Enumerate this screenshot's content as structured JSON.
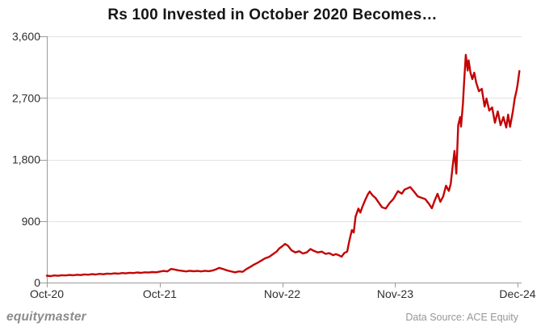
{
  "chart_data": {
    "type": "line",
    "title": "Rs 100 Invested in October 2020 Becomes…",
    "xlabel": "",
    "ylabel": "",
    "ylim": [
      0,
      3600
    ],
    "xlim_months": [
      0,
      50.4
    ],
    "grid": "horizontal-only",
    "legend": "none",
    "y_ticks": [
      {
        "label": "0",
        "value": 0
      },
      {
        "label": "900",
        "value": 900
      },
      {
        "label": "1,800",
        "value": 1800
      },
      {
        "label": "2,700",
        "value": 2700
      },
      {
        "label": "3,600",
        "value": 3600
      }
    ],
    "x_ticks": [
      {
        "label": "Oct-20",
        "month": 0
      },
      {
        "label": "Oct-21",
        "month": 12
      },
      {
        "label": "Nov-22",
        "month": 25
      },
      {
        "label": "Nov-23",
        "month": 37
      },
      {
        "label": "Dec-24",
        "month": 50
      }
    ],
    "start_value": 100,
    "end_value": 3092,
    "peak_value": 3330,
    "points": [
      [
        0,
        100
      ],
      [
        0.4,
        95
      ],
      [
        0.8,
        104
      ],
      [
        1.2,
        99
      ],
      [
        1.6,
        107
      ],
      [
        2,
        104
      ],
      [
        2.4,
        111
      ],
      [
        2.8,
        106
      ],
      [
        3.2,
        114
      ],
      [
        3.6,
        110
      ],
      [
        4,
        119
      ],
      [
        4.4,
        114
      ],
      [
        4.8,
        123
      ],
      [
        5.2,
        118
      ],
      [
        5.6,
        127
      ],
      [
        6,
        122
      ],
      [
        6.4,
        131
      ],
      [
        6.8,
        127
      ],
      [
        7.2,
        135
      ],
      [
        7.6,
        130
      ],
      [
        8,
        139
      ],
      [
        8.4,
        134
      ],
      [
        8.8,
        143
      ],
      [
        9.2,
        139
      ],
      [
        9.6,
        147
      ],
      [
        10,
        142
      ],
      [
        10.4,
        150
      ],
      [
        10.8,
        146
      ],
      [
        11.2,
        154
      ],
      [
        11.6,
        150
      ],
      [
        12,
        160
      ],
      [
        12.4,
        170
      ],
      [
        12.8,
        163
      ],
      [
        13.2,
        200
      ],
      [
        13.6,
        190
      ],
      [
        14,
        178
      ],
      [
        14.4,
        170
      ],
      [
        14.8,
        163
      ],
      [
        15.2,
        172
      ],
      [
        15.6,
        165
      ],
      [
        16,
        170
      ],
      [
        16.4,
        163
      ],
      [
        16.8,
        172
      ],
      [
        17.2,
        167
      ],
      [
        17.6,
        176
      ],
      [
        18,
        195
      ],
      [
        18.3,
        215
      ],
      [
        18.7,
        200
      ],
      [
        19.1,
        180
      ],
      [
        19.5,
        165
      ],
      [
        20,
        150
      ],
      [
        20.4,
        163
      ],
      [
        20.8,
        157
      ],
      [
        21.2,
        197
      ],
      [
        21.6,
        228
      ],
      [
        22,
        262
      ],
      [
        22.4,
        290
      ],
      [
        22.8,
        322
      ],
      [
        23.2,
        355
      ],
      [
        23.6,
        374
      ],
      [
        24,
        413
      ],
      [
        24.4,
        452
      ],
      [
        24.7,
        500
      ],
      [
        25,
        530
      ],
      [
        25.3,
        565
      ],
      [
        25.6,
        540
      ],
      [
        26,
        470
      ],
      [
        26.4,
        440
      ],
      [
        26.8,
        458
      ],
      [
        27.2,
        425
      ],
      [
        27.6,
        440
      ],
      [
        28,
        490
      ],
      [
        28.4,
        462
      ],
      [
        28.8,
        440
      ],
      [
        29.2,
        452
      ],
      [
        29.6,
        420
      ],
      [
        30,
        430
      ],
      [
        30.4,
        400
      ],
      [
        30.7,
        415
      ],
      [
        31,
        400
      ],
      [
        31.3,
        378
      ],
      [
        31.6,
        433
      ],
      [
        31.9,
        452
      ],
      [
        32.1,
        590
      ],
      [
        32.3,
        708
      ],
      [
        32.4,
        767
      ],
      [
        32.6,
        732
      ],
      [
        32.8,
        964
      ],
      [
        33.1,
        1082
      ],
      [
        33.3,
        1023
      ],
      [
        33.5,
        1101
      ],
      [
        33.8,
        1200
      ],
      [
        34.1,
        1290
      ],
      [
        34.3,
        1330
      ],
      [
        34.6,
        1275
      ],
      [
        34.9,
        1239
      ],
      [
        35.2,
        1180
      ],
      [
        35.6,
        1101
      ],
      [
        36,
        1082
      ],
      [
        36.4,
        1160
      ],
      [
        36.8,
        1220
      ],
      [
        37.3,
        1337
      ],
      [
        37.7,
        1300
      ],
      [
        38,
        1360
      ],
      [
        38.3,
        1377
      ],
      [
        38.6,
        1396
      ],
      [
        39,
        1330
      ],
      [
        39.4,
        1259
      ],
      [
        39.8,
        1239
      ],
      [
        40.2,
        1220
      ],
      [
        40.6,
        1150
      ],
      [
        40.9,
        1086
      ],
      [
        41.2,
        1200
      ],
      [
        41.5,
        1298
      ],
      [
        41.8,
        1180
      ],
      [
        42.1,
        1260
      ],
      [
        42.4,
        1416
      ],
      [
        42.7,
        1340
      ],
      [
        42.9,
        1440
      ],
      [
        43.1,
        1688
      ],
      [
        43.3,
        1924
      ],
      [
        43.5,
        1594
      ],
      [
        43.7,
        2302
      ],
      [
        43.9,
        2420
      ],
      [
        44,
        2280
      ],
      [
        44.2,
        2620
      ],
      [
        44.3,
        2868
      ],
      [
        44.5,
        3330
      ],
      [
        44.7,
        3100
      ],
      [
        44.8,
        3250
      ],
      [
        45,
        3069
      ],
      [
        45.2,
        2974
      ],
      [
        45.4,
        3069
      ],
      [
        45.6,
        2927
      ],
      [
        45.9,
        2797
      ],
      [
        46.2,
        2833
      ],
      [
        46.5,
        2573
      ],
      [
        46.7,
        2691
      ],
      [
        47,
        2514
      ],
      [
        47.3,
        2561
      ],
      [
        47.6,
        2337
      ],
      [
        47.9,
        2502
      ],
      [
        48.2,
        2302
      ],
      [
        48.5,
        2420
      ],
      [
        48.8,
        2266
      ],
      [
        49,
        2455
      ],
      [
        49.2,
        2278
      ],
      [
        49.5,
        2502
      ],
      [
        49.7,
        2691
      ],
      [
        49.9,
        2809
      ],
      [
        50,
        2890
      ],
      [
        50.2,
        3092
      ]
    ]
  },
  "footer": {
    "brand": "equitymaster",
    "source": "Data Source: ACE Equity"
  },
  "colors": {
    "line": "#c40404",
    "grid": "#e2e2e2",
    "axis": "#9a9a9a",
    "tick_text": "#2e2e2e",
    "title_text": "#161616",
    "brand_text": "#8b8b8b",
    "source_text": "#979797",
    "background": "#ffffff"
  }
}
